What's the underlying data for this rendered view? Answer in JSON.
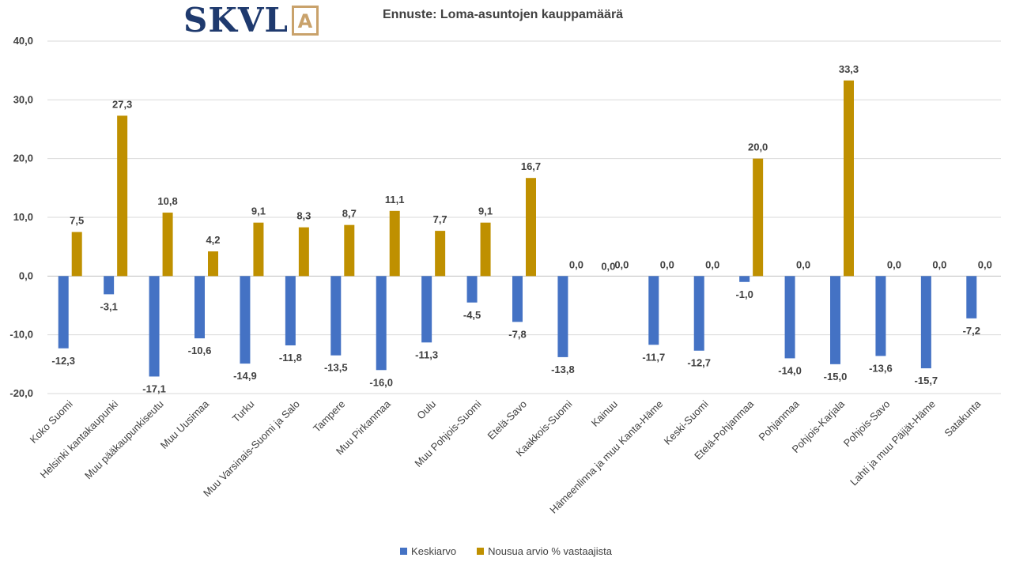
{
  "logo": {
    "text": "SKVL",
    "letter": "A"
  },
  "chart_data": {
    "type": "bar",
    "title": "Ennuste: Loma-asuntojen kauppamäärä",
    "categories": [
      "Koko Suomi",
      "Helsinki kantakaupunki",
      "Muu pääkaupunkiseutu",
      "Muu Uusimaa",
      "Turku",
      "Muu Varsinais-Suomi ja Salo",
      "Tampere",
      "Muu Pirkanmaa",
      "Oulu",
      "Muu Pohjois-Suomi",
      "Etelä-Savo",
      "Kaakkois-Suomi",
      "Kainuu",
      "Hämeenlinna ja muu Kanta-Häme",
      "Keski-Suomi",
      "Etelä-Pohjanmaa",
      "Pohjanmaa",
      "Pohjois-Karjala",
      "Pohjois-Savo",
      "Lahti ja muu Päijät-Häme",
      "Satakunta"
    ],
    "series": [
      {
        "name": "Keskiarvo",
        "color": "#4472c4",
        "values": [
          -12.3,
          -3.1,
          -17.1,
          -10.6,
          -14.9,
          -11.8,
          -13.5,
          -16.0,
          -11.3,
          -4.5,
          -7.8,
          -13.8,
          0.0,
          -11.7,
          -12.7,
          -1.0,
          -14.0,
          -15.0,
          -13.6,
          -15.7,
          -7.2
        ]
      },
      {
        "name": "Nousua arvio % vastaajista",
        "color": "#bf9000",
        "values": [
          7.5,
          27.3,
          10.8,
          4.2,
          9.1,
          8.3,
          8.7,
          11.1,
          7.7,
          9.1,
          16.7,
          0.0,
          0.0,
          0.0,
          0.0,
          20.0,
          0.0,
          33.3,
          0.0,
          0.0,
          0.0
        ]
      }
    ],
    "ylim": [
      -20,
      40
    ],
    "yticks": [
      -20,
      -10,
      0,
      10,
      20,
      30,
      40
    ],
    "grid": true,
    "legend": "bottom",
    "decimal_separator": ","
  }
}
